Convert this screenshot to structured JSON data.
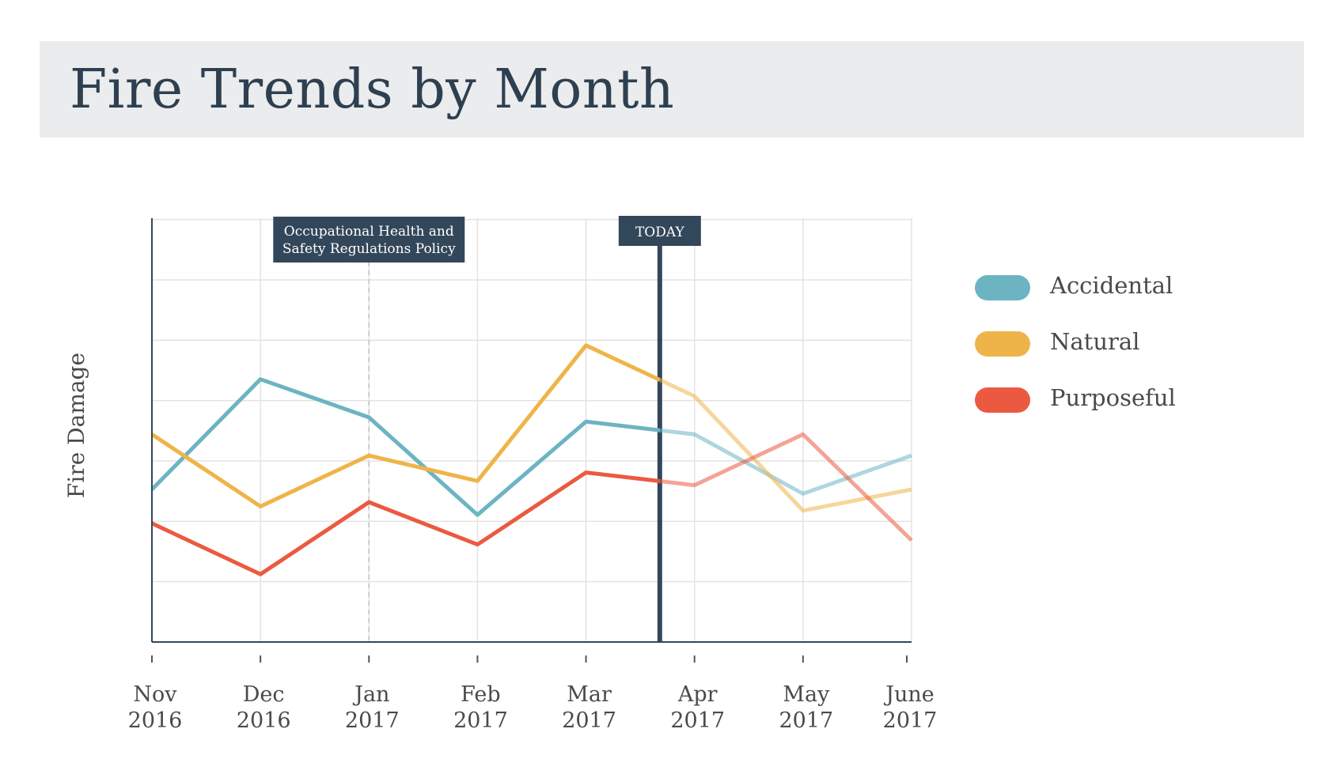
{
  "title": "Fire Trends by Month",
  "chart_data": {
    "type": "line",
    "title": "Fire Trends by Month",
    "xlabel": "",
    "ylabel": "Fire Damage",
    "ylim": [
      0,
      100
    ],
    "grid": true,
    "legend_placement": "right",
    "categories": [
      {
        "month": "Nov",
        "year": "2016"
      },
      {
        "month": "Dec",
        "year": "2016"
      },
      {
        "month": "Jan",
        "year": "2017"
      },
      {
        "month": "Feb",
        "year": "2017"
      },
      {
        "month": "Mar",
        "year": "2017"
      },
      {
        "month": "Apr",
        "year": "2017"
      },
      {
        "month": "May",
        "year": "2017"
      },
      {
        "month": "June",
        "year": "2017"
      }
    ],
    "series": [
      {
        "name": "Accidental",
        "color": "#6cb4c2",
        "values": [
          36,
          62,
          53,
          30,
          52,
          49,
          35,
          44
        ]
      },
      {
        "name": "Natural",
        "color": "#efb449",
        "values": [
          49,
          32,
          44,
          38,
          70,
          58,
          31,
          36
        ]
      },
      {
        "name": "Purposeful",
        "color": "#eb5a40",
        "values": [
          28,
          16,
          33,
          23,
          40,
          37,
          49,
          24
        ]
      }
    ],
    "annotations": [
      {
        "label": "Occupational Health and Safety Regulations Policy",
        "x_index": 2,
        "style": "dashed"
      },
      {
        "label": "TODAY",
        "x_index": 4.68,
        "style": "solid"
      }
    ],
    "faded_after_x_index": 4.68
  }
}
